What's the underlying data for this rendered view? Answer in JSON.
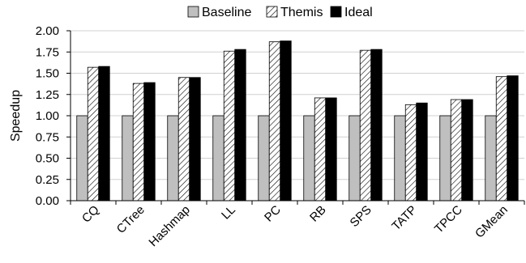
{
  "chart_data": {
    "type": "bar",
    "title": "",
    "xlabel": "",
    "ylabel": "Speedup",
    "ylim": [
      0,
      2.0
    ],
    "yticks": [
      "0.00",
      "0.25",
      "0.50",
      "0.75",
      "1.00",
      "1.25",
      "1.50",
      "1.75",
      "2.00"
    ],
    "grid": "horizontal",
    "legend_position": "top",
    "categories": [
      "CQ",
      "CTree",
      "Hashmap",
      "LL",
      "PC",
      "RB",
      "SPS",
      "TATP",
      "TPCC",
      "GMean"
    ],
    "series": [
      {
        "name": "Baseline",
        "fill": "#bfbfbf",
        "pattern": "solid",
        "values": [
          1.0,
          1.0,
          1.0,
          1.0,
          1.0,
          1.0,
          1.0,
          1.0,
          1.0,
          1.0
        ]
      },
      {
        "name": "Themis",
        "fill": "#ffffff",
        "pattern": "hatch",
        "values": [
          1.57,
          1.38,
          1.45,
          1.76,
          1.87,
          1.21,
          1.77,
          1.13,
          1.19,
          1.46
        ]
      },
      {
        "name": "Ideal",
        "fill": "#000000",
        "pattern": "solid",
        "values": [
          1.58,
          1.39,
          1.45,
          1.78,
          1.88,
          1.21,
          1.78,
          1.15,
          1.19,
          1.47
        ]
      }
    ]
  }
}
